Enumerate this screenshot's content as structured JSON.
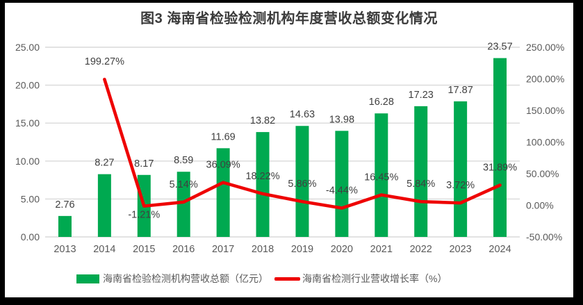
{
  "title": "图3 海南省检验检测机构年度营收总额变化情况",
  "colors": {
    "bar": "#00a950",
    "line": "#ee0404",
    "grid": "#d9d9d9",
    "axis_text": "#595959",
    "data_label_text": "#404040",
    "title_text": "#3a3a3a",
    "chart_bg": "#ffffff",
    "frame_bg": "#000000"
  },
  "legend": {
    "bar_label": "海南省检验检测机构营收总额（亿元）",
    "line_label": "海南省检测行业营收增长率（%）"
  },
  "chart_data": {
    "type": "bar",
    "subtype": "bar+line combo, dual axis",
    "title": "图3 海南省检验检测机构年度营收总额变化情况",
    "categories": [
      "2013",
      "2014",
      "2015",
      "2016",
      "2017",
      "2018",
      "2019",
      "2020",
      "2021",
      "2022",
      "2023",
      "2024"
    ],
    "series": [
      {
        "name": "海南省检验检测机构营收总额（亿元）",
        "type": "bar",
        "axis": "left",
        "values": [
          2.76,
          8.27,
          8.17,
          8.59,
          11.69,
          13.82,
          14.63,
          13.98,
          16.28,
          17.23,
          17.87,
          23.57
        ],
        "labels": [
          "2.76",
          "8.27",
          "8.17",
          "8.59",
          "11.69",
          "13.82",
          "14.63",
          "13.98",
          "16.28",
          "17.23",
          "17.87",
          "23.57"
        ]
      },
      {
        "name": "海南省检测行业营收增长率（%）",
        "type": "line",
        "axis": "right",
        "values": [
          null,
          199.27,
          -1.21,
          5.14,
          36.09,
          18.22,
          5.86,
          -4.44,
          16.45,
          5.84,
          3.72,
          31.89
        ],
        "labels": [
          null,
          "199.27%",
          "-1.21%",
          "5.14%",
          "36.09%",
          "18.22%",
          "5.86%",
          "-4.44%",
          "16.45%",
          "5.84%",
          "3.72%",
          "31.89%"
        ],
        "label_side": [
          null,
          "above",
          "below",
          "above",
          "above",
          "above",
          "above",
          "above",
          "above",
          "above",
          "above",
          "above"
        ]
      }
    ],
    "left_axis": {
      "ticks": [
        "0.00",
        "5.00",
        "10.00",
        "15.00",
        "20.00",
        "25.00"
      ],
      "min": 0,
      "max": 25,
      "step": 5
    },
    "right_axis": {
      "ticks": [
        "-50.00%",
        "0.00%",
        "50.00%",
        "100.00%",
        "150.00%",
        "200.00%",
        "250.00%"
      ],
      "min": -50,
      "max": 250,
      "step": 50
    },
    "grid": true,
    "legend_position": "bottom"
  }
}
